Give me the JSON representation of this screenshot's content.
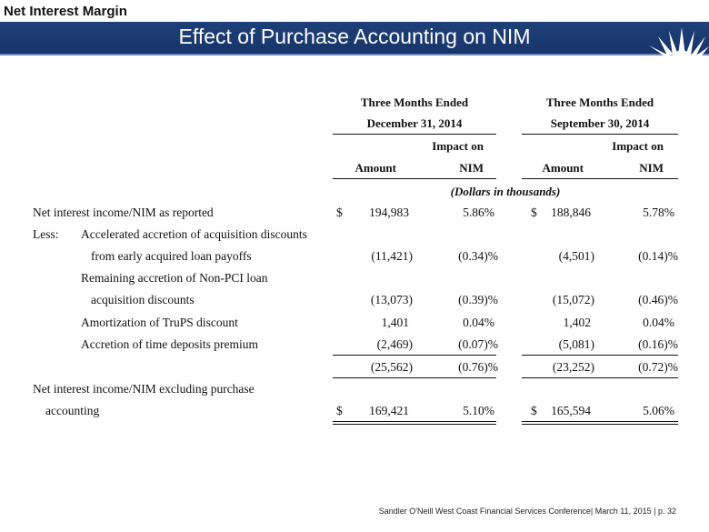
{
  "header": {
    "section_title": "Net Interest Margin",
    "slide_title": "Effect of Purchase Accounting on NIM"
  },
  "table": {
    "period1_line1": "Three Months Ended",
    "period1_line2": "December 31, 2014",
    "period2_line1": "Three Months Ended",
    "period2_line2": "September 30, 2014",
    "impact_label_line1": "Impact on",
    "impact_label_line2": "NIM",
    "amount_label": "Amount",
    "units_note": "(Dollars in thousands)",
    "dollar_sign": "$",
    "rows": [
      {
        "label": "Net interest income/NIM as reported",
        "amt1": "194,983",
        "nim1": "5.86%",
        "amt2": "188,846",
        "nim2": "5.78%"
      },
      {
        "label": "Less:",
        "label2": "Accelerated accretion of acquisition discounts"
      },
      {
        "label": "from early acquired loan payoffs",
        "amt1": "(11,421)",
        "nim1": "(0.34)%",
        "amt2": "(4,501)",
        "nim2": "(0.14)%"
      },
      {
        "label": "Remaining accretion of Non-PCI loan"
      },
      {
        "label": "acquisition discounts",
        "amt1": "(13,073)",
        "nim1": "(0.39)%",
        "amt2": "(15,072)",
        "nim2": "(0.46)%"
      },
      {
        "label": "Amortization of TruPS discount",
        "amt1": "1,401",
        "nim1": "0.04%",
        "amt2": "1,402",
        "nim2": "0.04%"
      },
      {
        "label": "Accretion of time deposits premium",
        "amt1": "(2,469)",
        "nim1": "(0.07)%",
        "amt2": "(5,081)",
        "nim2": "(0.16)%"
      },
      {
        "label": "",
        "amt1": "(25,562)",
        "nim1": "(0.76)%",
        "amt2": "(23,252)",
        "nim2": "(0.72)%"
      },
      {
        "label": "Net interest income/NIM excluding purchase"
      },
      {
        "label": "accounting",
        "amt1": "169,421",
        "nim1": "5.10%",
        "amt2": "165,594",
        "nim2": "5.06%"
      }
    ]
  },
  "footer": {
    "text": "Sandler O'Neill West Coast Financial Services Conference| March 11, 2015 | p. 32"
  },
  "colors": {
    "banner": "#1d3f78",
    "banner_text": "#ffffff"
  }
}
